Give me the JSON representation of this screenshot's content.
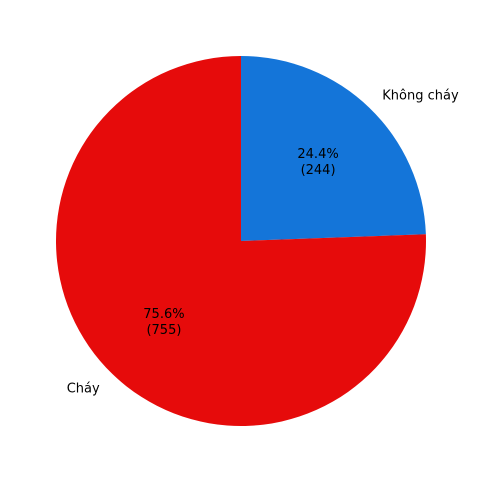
{
  "chart_data": {
    "type": "pie",
    "title": "",
    "slices": [
      {
        "label": "Không cháy",
        "value": 244,
        "percent_label": "24.4%",
        "count_label": "(244)",
        "color": "#1475d9"
      },
      {
        "label": "Cháy",
        "value": 755,
        "percent_label": "75.6%",
        "count_label": "(755)",
        "color": "#e60b0b"
      }
    ],
    "start_angle_deg": 90,
    "direction": "clockwise",
    "legend": "none"
  }
}
